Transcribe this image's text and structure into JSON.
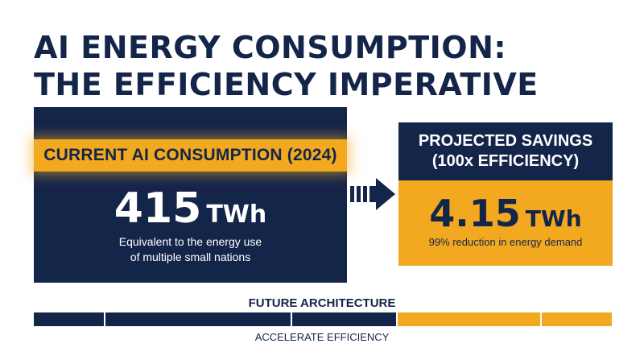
{
  "title": {
    "line1": "AI ENERGY CONSUMPTION:",
    "line2": "THE EFFICIENCY IMPERATIVE"
  },
  "current": {
    "label": "CURRENT AI CONSUMPTION (2024)",
    "value": "415",
    "unit": "TWh",
    "desc_line1": "Equivalent to the energy use",
    "desc_line2": "of multiple small nations"
  },
  "projected": {
    "label_line1": "PROJECTED SAVINGS",
    "label_line2": "(100x EFFICIENCY)",
    "value": "4.15",
    "unit": "TWh",
    "desc": "99% reduction in energy demand"
  },
  "footer": {
    "top_label": "FUTURE ARCHITECTURE",
    "bottom_label": "ACCELERATE EFFICIENCY"
  },
  "colors": {
    "navy": "#14254a",
    "gold": "#f3a91f",
    "background": "#ffffff"
  },
  "icons": {
    "transition": "arrow-right-icon"
  }
}
